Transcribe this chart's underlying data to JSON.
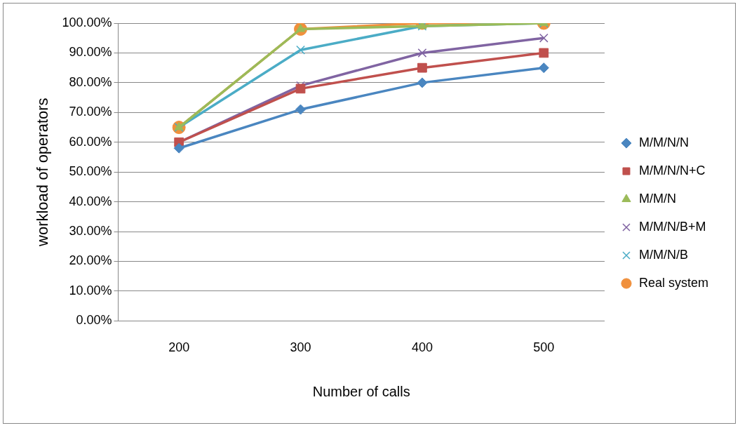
{
  "chart_data": {
    "type": "line",
    "xlabel": "Number of calls",
    "ylabel": "workload of operators",
    "categories": [
      "200",
      "300",
      "400",
      "500"
    ],
    "ylim": [
      0,
      100
    ],
    "yticks": [
      {
        "value": 0,
        "label": "0.00%"
      },
      {
        "value": 10,
        "label": "10.00%"
      },
      {
        "value": 20,
        "label": "20.00%"
      },
      {
        "value": 30,
        "label": "30.00%"
      },
      {
        "value": 40,
        "label": "40.00%"
      },
      {
        "value": 50,
        "label": "50.00%"
      },
      {
        "value": 60,
        "label": "60.00%"
      },
      {
        "value": 70,
        "label": "70.00%"
      },
      {
        "value": 80,
        "label": "80.00%"
      },
      {
        "value": 90,
        "label": "90.00%"
      },
      {
        "value": 100,
        "label": "100.00%"
      }
    ],
    "grid": "y",
    "legend": "right",
    "series": [
      {
        "name": "M/M/N/N",
        "color": "#4a86c0",
        "marker": "diamond",
        "values": [
          58,
          71,
          80,
          85
        ]
      },
      {
        "name": "M/M/N/N+C",
        "color": "#c0504d",
        "marker": "square",
        "values": [
          60,
          78,
          85,
          90
        ]
      },
      {
        "name": "M/M/N",
        "color": "#9bbb59",
        "marker": "triangle",
        "values": [
          65,
          98,
          99,
          100
        ]
      },
      {
        "name": "M/M/N/B+M",
        "color": "#8064a2",
        "marker": "cross",
        "values": [
          60,
          79,
          90,
          95
        ]
      },
      {
        "name": "M/M/N/B",
        "color": "#4bacc6",
        "marker": "cross",
        "values": [
          65,
          91,
          99,
          100
        ]
      },
      {
        "name": "Real system",
        "color": "#f0903c",
        "marker": "circle",
        "values": [
          65,
          98,
          100,
          100
        ]
      }
    ]
  }
}
